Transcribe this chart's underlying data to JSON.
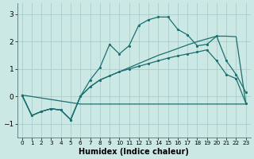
{
  "bg_color": "#cce8e4",
  "grid_color": "#aacece",
  "line_color": "#1a7070",
  "xlabel": "Humidex (Indice chaleur)",
  "ylim": [
    -1.5,
    3.4
  ],
  "xlim": [
    -0.5,
    23.5
  ],
  "yticks": [
    -1,
    0,
    1,
    2,
    3
  ],
  "xticks": [
    0,
    1,
    2,
    3,
    4,
    5,
    6,
    7,
    8,
    9,
    10,
    11,
    12,
    13,
    14,
    15,
    16,
    17,
    18,
    19,
    20,
    21,
    22,
    23
  ],
  "line1": {
    "x": [
      0,
      1,
      2,
      3,
      4,
      5,
      6,
      7,
      8,
      9,
      10,
      11,
      12,
      13,
      14,
      15,
      16,
      17,
      18,
      19,
      20,
      21,
      22,
      23
    ],
    "y": [
      0.05,
      -0.7,
      -0.55,
      -0.45,
      -0.5,
      -0.85,
      0.0,
      0.35,
      0.6,
      0.75,
      0.9,
      1.05,
      1.2,
      1.35,
      1.5,
      1.62,
      1.75,
      1.88,
      2.0,
      2.1,
      2.2,
      2.2,
      2.18,
      -0.25
    ]
  },
  "line2": {
    "x": [
      0,
      1,
      2,
      3,
      4,
      5,
      6,
      7,
      8,
      9,
      10,
      11,
      12,
      13,
      14,
      15,
      16,
      17,
      18,
      19,
      20,
      21,
      22,
      23
    ],
    "y": [
      0.05,
      -0.7,
      -0.55,
      -0.45,
      -0.5,
      -0.85,
      0.0,
      0.6,
      1.05,
      1.9,
      1.55,
      1.85,
      2.6,
      2.8,
      2.9,
      2.9,
      2.45,
      2.25,
      1.85,
      1.9,
      2.2,
      1.3,
      0.8,
      0.15
    ]
  },
  "line3": {
    "x": [
      0,
      6,
      10,
      23
    ],
    "y": [
      0.05,
      -0.28,
      -0.28,
      -0.28
    ]
  },
  "line4": {
    "x": [
      0,
      1,
      2,
      3,
      4,
      5,
      6,
      7,
      8,
      9,
      10,
      11,
      12,
      13,
      14,
      15,
      16,
      17,
      18,
      19,
      20,
      21,
      22,
      23
    ],
    "y": [
      0.05,
      -0.7,
      -0.55,
      -0.45,
      -0.5,
      -0.85,
      0.0,
      0.35,
      0.6,
      0.75,
      0.9,
      1.0,
      1.1,
      1.2,
      1.3,
      1.4,
      1.48,
      1.55,
      1.62,
      1.7,
      1.3,
      0.8,
      0.65,
      -0.25
    ]
  }
}
